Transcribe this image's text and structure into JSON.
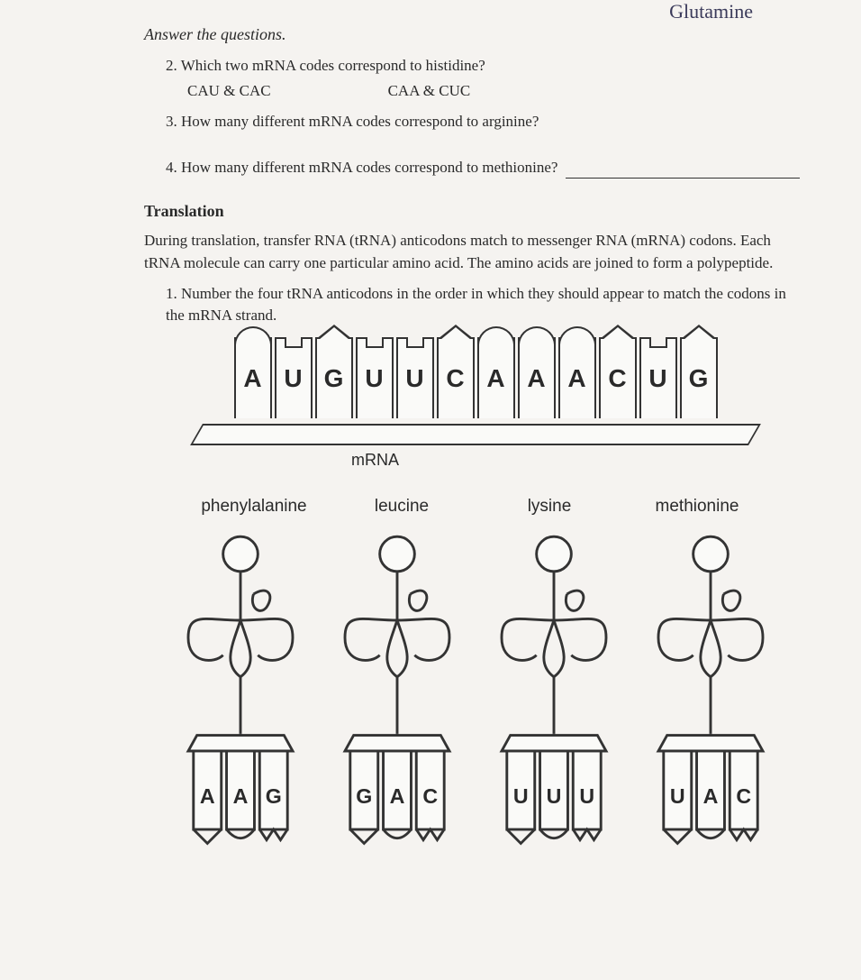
{
  "handwritten_top": "Glutamine",
  "answer_header": "Answer the questions.",
  "q2": {
    "num": "2.",
    "text": "Which two mRNA codes correspond to histidine?",
    "opt_a": "CAU & CAC",
    "opt_b": "CAA & CUC"
  },
  "q3": {
    "num": "3.",
    "text": "How many different mRNA codes correspond to arginine?"
  },
  "q4": {
    "num": "4.",
    "text": "How many different mRNA codes correspond to methionine?"
  },
  "translation": {
    "heading": "Translation",
    "body": "During translation, transfer RNA (tRNA) anticodons match to messenger RNA (mRNA) codons. Each tRNA molecule can carry one particular amino acid. The amino acids are joined to form a polypeptide.",
    "q1_num": "1.",
    "q1_text": "Number the four tRNA anticodons in the order in which they should appear to match the codons in the mRNA strand."
  },
  "mrna": {
    "label": "mRNA",
    "bases": [
      {
        "letter": "A",
        "shape": "round-top"
      },
      {
        "letter": "U",
        "shape": "notch-top"
      },
      {
        "letter": "G",
        "shape": "point-top"
      },
      {
        "letter": "U",
        "shape": "notch-top"
      },
      {
        "letter": "U",
        "shape": "notch-top"
      },
      {
        "letter": "C",
        "shape": "point-top"
      },
      {
        "letter": "A",
        "shape": "round-top"
      },
      {
        "letter": "A",
        "shape": "round-top"
      },
      {
        "letter": "A",
        "shape": "round-top"
      },
      {
        "letter": "C",
        "shape": "point-top"
      },
      {
        "letter": "U",
        "shape": "notch-top"
      },
      {
        "letter": "G",
        "shape": "point-top"
      }
    ]
  },
  "trnas": [
    {
      "amino": "phenylalanine",
      "anticodon": [
        "A",
        "A",
        "G"
      ]
    },
    {
      "amino": "leucine",
      "anticodon": [
        "G",
        "A",
        "C"
      ]
    },
    {
      "amino": "lysine",
      "anticodon": [
        "U",
        "U",
        "U"
      ]
    },
    {
      "amino": "methionine",
      "anticodon": [
        "U",
        "A",
        "C"
      ]
    }
  ],
  "colors": {
    "stroke": "#333333",
    "fill": "#fafaf8",
    "page_bg": "#f5f3f0",
    "text": "#2a2a2a"
  }
}
